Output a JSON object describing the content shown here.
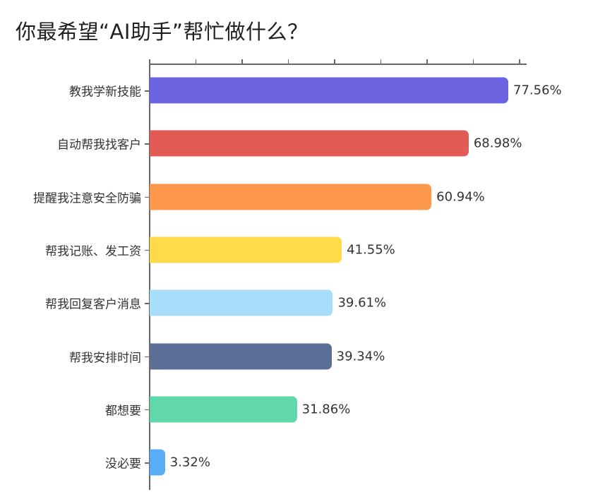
{
  "chart_data": {
    "type": "bar",
    "orientation": "horizontal",
    "title": "你最希望“AI助手”帮忙做什么？",
    "xlabel": "",
    "ylabel": "",
    "xlim": [
      0,
      80
    ],
    "x_tick_step": 10,
    "x_tick_labels_visible": false,
    "grid": false,
    "legend": false,
    "categories": [
      "教我学新技能",
      "自动帮我找客户",
      "提醒我注意安全防骗",
      "帮我记账、发工资",
      "帮我回复客户消息",
      "帮我安排时间",
      "都想要",
      "没必要"
    ],
    "values": [
      77.56,
      68.98,
      60.94,
      41.55,
      39.61,
      39.34,
      31.86,
      3.32
    ],
    "value_labels": [
      "77.56%",
      "68.98%",
      "60.94%",
      "41.55%",
      "39.61%",
      "39.34%",
      "31.86%",
      "3.32%"
    ],
    "colors": [
      "#6c63e0",
      "#e35b55",
      "#fd974b",
      "#ffda4a",
      "#a8def9",
      "#5a6e96",
      "#61d8aa",
      "#5aacf4"
    ]
  },
  "title": "你最希望“AI助手”帮忙做什么？"
}
